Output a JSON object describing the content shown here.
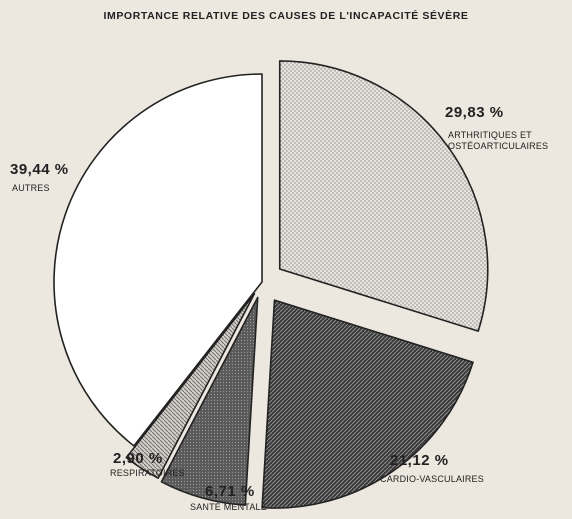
{
  "chart_data": {
    "type": "pie",
    "title": "IMPORTANCE RELATIVE DES CAUSES DE L'INCAPACITÉ SÉVÈRE",
    "categories": [
      "ARTHRITIQUES ET OSTÉOARTICULAIRES",
      "CARDIO-VASCULAIRES",
      "SANTÉ MENTALE",
      "RESPIRATOIRES",
      "AUTRES"
    ],
    "values": [
      29.83,
      21.12,
      6.71,
      2.9,
      39.44
    ],
    "value_labels": [
      "29,83 %",
      "21,12 %",
      "6,71 %",
      "2,90 %",
      "39,44 %"
    ],
    "colors": [
      "#dedad4",
      "#4a4a4a",
      "#6a6a6a",
      "#bdbab4",
      "#ffffff"
    ]
  }
}
